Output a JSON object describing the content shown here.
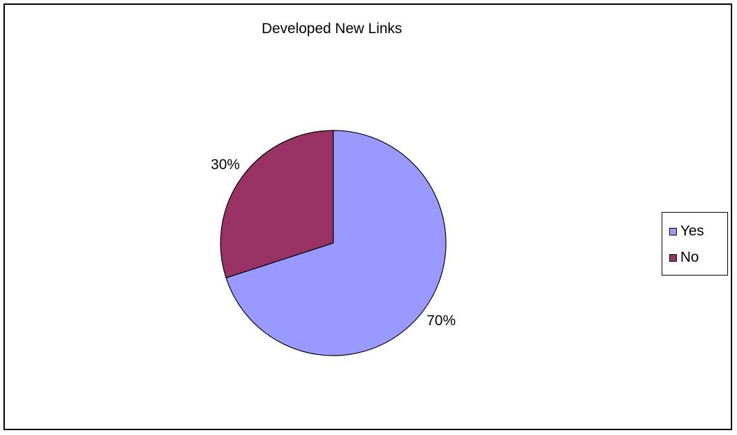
{
  "chart_data": {
    "type": "pie",
    "title": "Developed New Links",
    "categories": [
      "Yes",
      "No"
    ],
    "values": [
      70,
      30
    ],
    "value_labels": [
      "70%",
      "30%"
    ],
    "colors": [
      "#9999FF",
      "#993366"
    ],
    "legend": {
      "placement": "right",
      "entries": [
        "Yes",
        "No"
      ]
    },
    "start_angle": "12 o'clock",
    "direction": "clockwise"
  }
}
